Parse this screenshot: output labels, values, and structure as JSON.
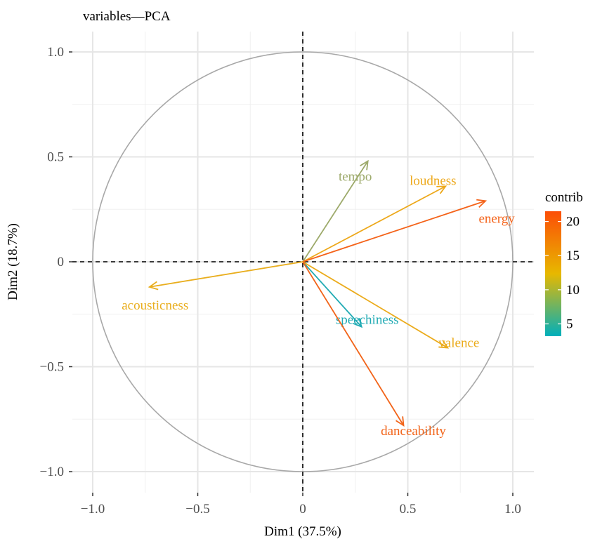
{
  "chart_data": {
    "type": "scatter",
    "subtype": "pca-variable-correlation-circle",
    "title": "variables—PCA",
    "xlabel": "Dim1 (37.5%)",
    "ylabel": "Dim2 (18.7%)",
    "xlim": [
      -1.1,
      1.1
    ],
    "ylim": [
      -1.1,
      1.1
    ],
    "x_ticks": [
      -1.0,
      -0.5,
      0,
      0.5,
      1.0
    ],
    "x_tick_labels": [
      "−1.0",
      "−0.5",
      "0",
      "0.5",
      "1.0"
    ],
    "y_ticks": [
      -1.0,
      -0.5,
      0,
      0.5,
      1.0
    ],
    "y_tick_labels": [
      "−1.0",
      "−0.5",
      "0",
      "0.5",
      "1.0"
    ],
    "grid": true,
    "unit_circle": true,
    "reference_lines": "dashed at x=0 and y=0",
    "color_scale": {
      "title": "contrib",
      "ticks": [
        5,
        10,
        15,
        20
      ],
      "range": [
        3.2,
        21.5
      ],
      "colors": [
        "#00AFBB",
        "#E7B800",
        "#FC4E07"
      ],
      "placement": "right"
    },
    "variables": [
      {
        "name": "tempo",
        "x": 0.31,
        "y": 0.48,
        "contrib": 10.5,
        "color": "#9DAA6B"
      },
      {
        "name": "loudness",
        "x": 0.68,
        "y": 0.36,
        "contrib": 15.6,
        "color": "#EDA81A"
      },
      {
        "name": "energy",
        "x": 0.87,
        "y": 0.29,
        "contrib": 20.3,
        "color": "#F4631A"
      },
      {
        "name": "acousticness",
        "x": -0.73,
        "y": -0.12,
        "contrib": 14.5,
        "color": "#E9AE1E"
      },
      {
        "name": "speechiness",
        "x": 0.28,
        "y": -0.31,
        "contrib": 4.3,
        "color": "#22ABB4"
      },
      {
        "name": "valence",
        "x": 0.69,
        "y": -0.41,
        "contrib": 15.0,
        "color": "#EBAB1B"
      },
      {
        "name": "danceability",
        "x": 0.48,
        "y": -0.78,
        "contrib": 20.5,
        "color": "#F26419"
      }
    ]
  }
}
